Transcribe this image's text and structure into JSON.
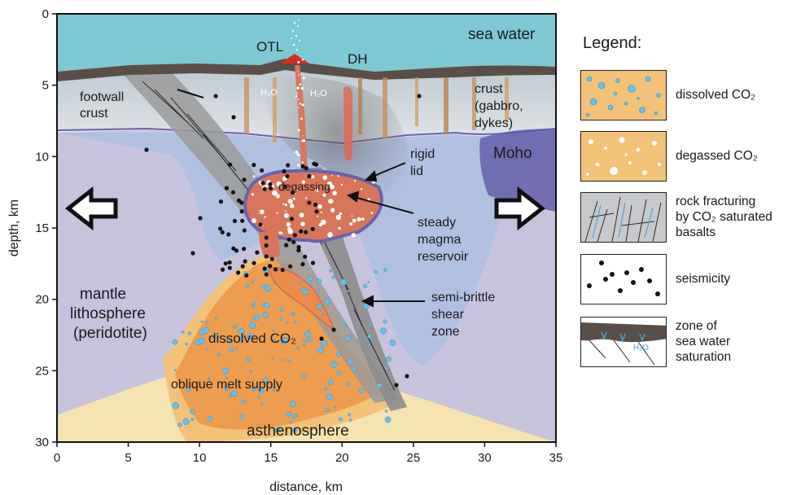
{
  "axes": {
    "ylabel": "depth, km",
    "xlabel": "distance, km",
    "x_ticks": [
      "0",
      "5",
      "10",
      "15",
      "20",
      "25",
      "30",
      "35"
    ],
    "y_ticks": [
      "0",
      "5",
      "10",
      "15",
      "20",
      "25",
      "30"
    ]
  },
  "labels": {
    "sea_water": "sea water",
    "otl": "OTL",
    "dh": "DH",
    "footwall_line1": "footwall",
    "footwall_line2": "crust",
    "crust_line1": "crust",
    "crust_line2": "(gabbro,",
    "crust_line3": "dykes)",
    "moho": "Moho",
    "rigid_line1": "rigid",
    "rigid_line2": "lid",
    "degassing": "degassing",
    "steady_line1": "steady",
    "steady_line2": "magma",
    "steady_line3": "reservoir",
    "mantle_line1": "mantle",
    "mantle_line2": "lithosphere",
    "mantle_line3": "(peridotite)",
    "semi_line1": "semi-brittle",
    "semi_line2": "shear",
    "semi_line3": "zone",
    "dissolved": "dissolved CO₂",
    "oblique": "oblique melt supply",
    "asthenosphere": "asthenosphere",
    "h2o": "H₂O"
  },
  "legend": {
    "title": "Legend:",
    "items": [
      {
        "lines": [
          "dissolved CO₂"
        ]
      },
      {
        "lines": [
          "degassed CO₂"
        ]
      },
      {
        "lines": [
          "rock fracturing",
          "by CO₂ saturated",
          "basalts"
        ]
      },
      {
        "lines": [
          "seismicity"
        ]
      },
      {
        "lines": [
          "zone of",
          "sea water",
          "saturation"
        ]
      }
    ]
  },
  "colors": {
    "sea": "#7cc9d3",
    "crust": "#d6dde3",
    "mantle": "#c8c3dc",
    "moho": "#6a62ad",
    "magma": "#d9755a",
    "melt": "#f0a456",
    "asthenosphere": "#f5e3b0",
    "shear": "#9a9a9a",
    "rock": "#5a4e48",
    "bubble": "#6bbde8"
  }
}
